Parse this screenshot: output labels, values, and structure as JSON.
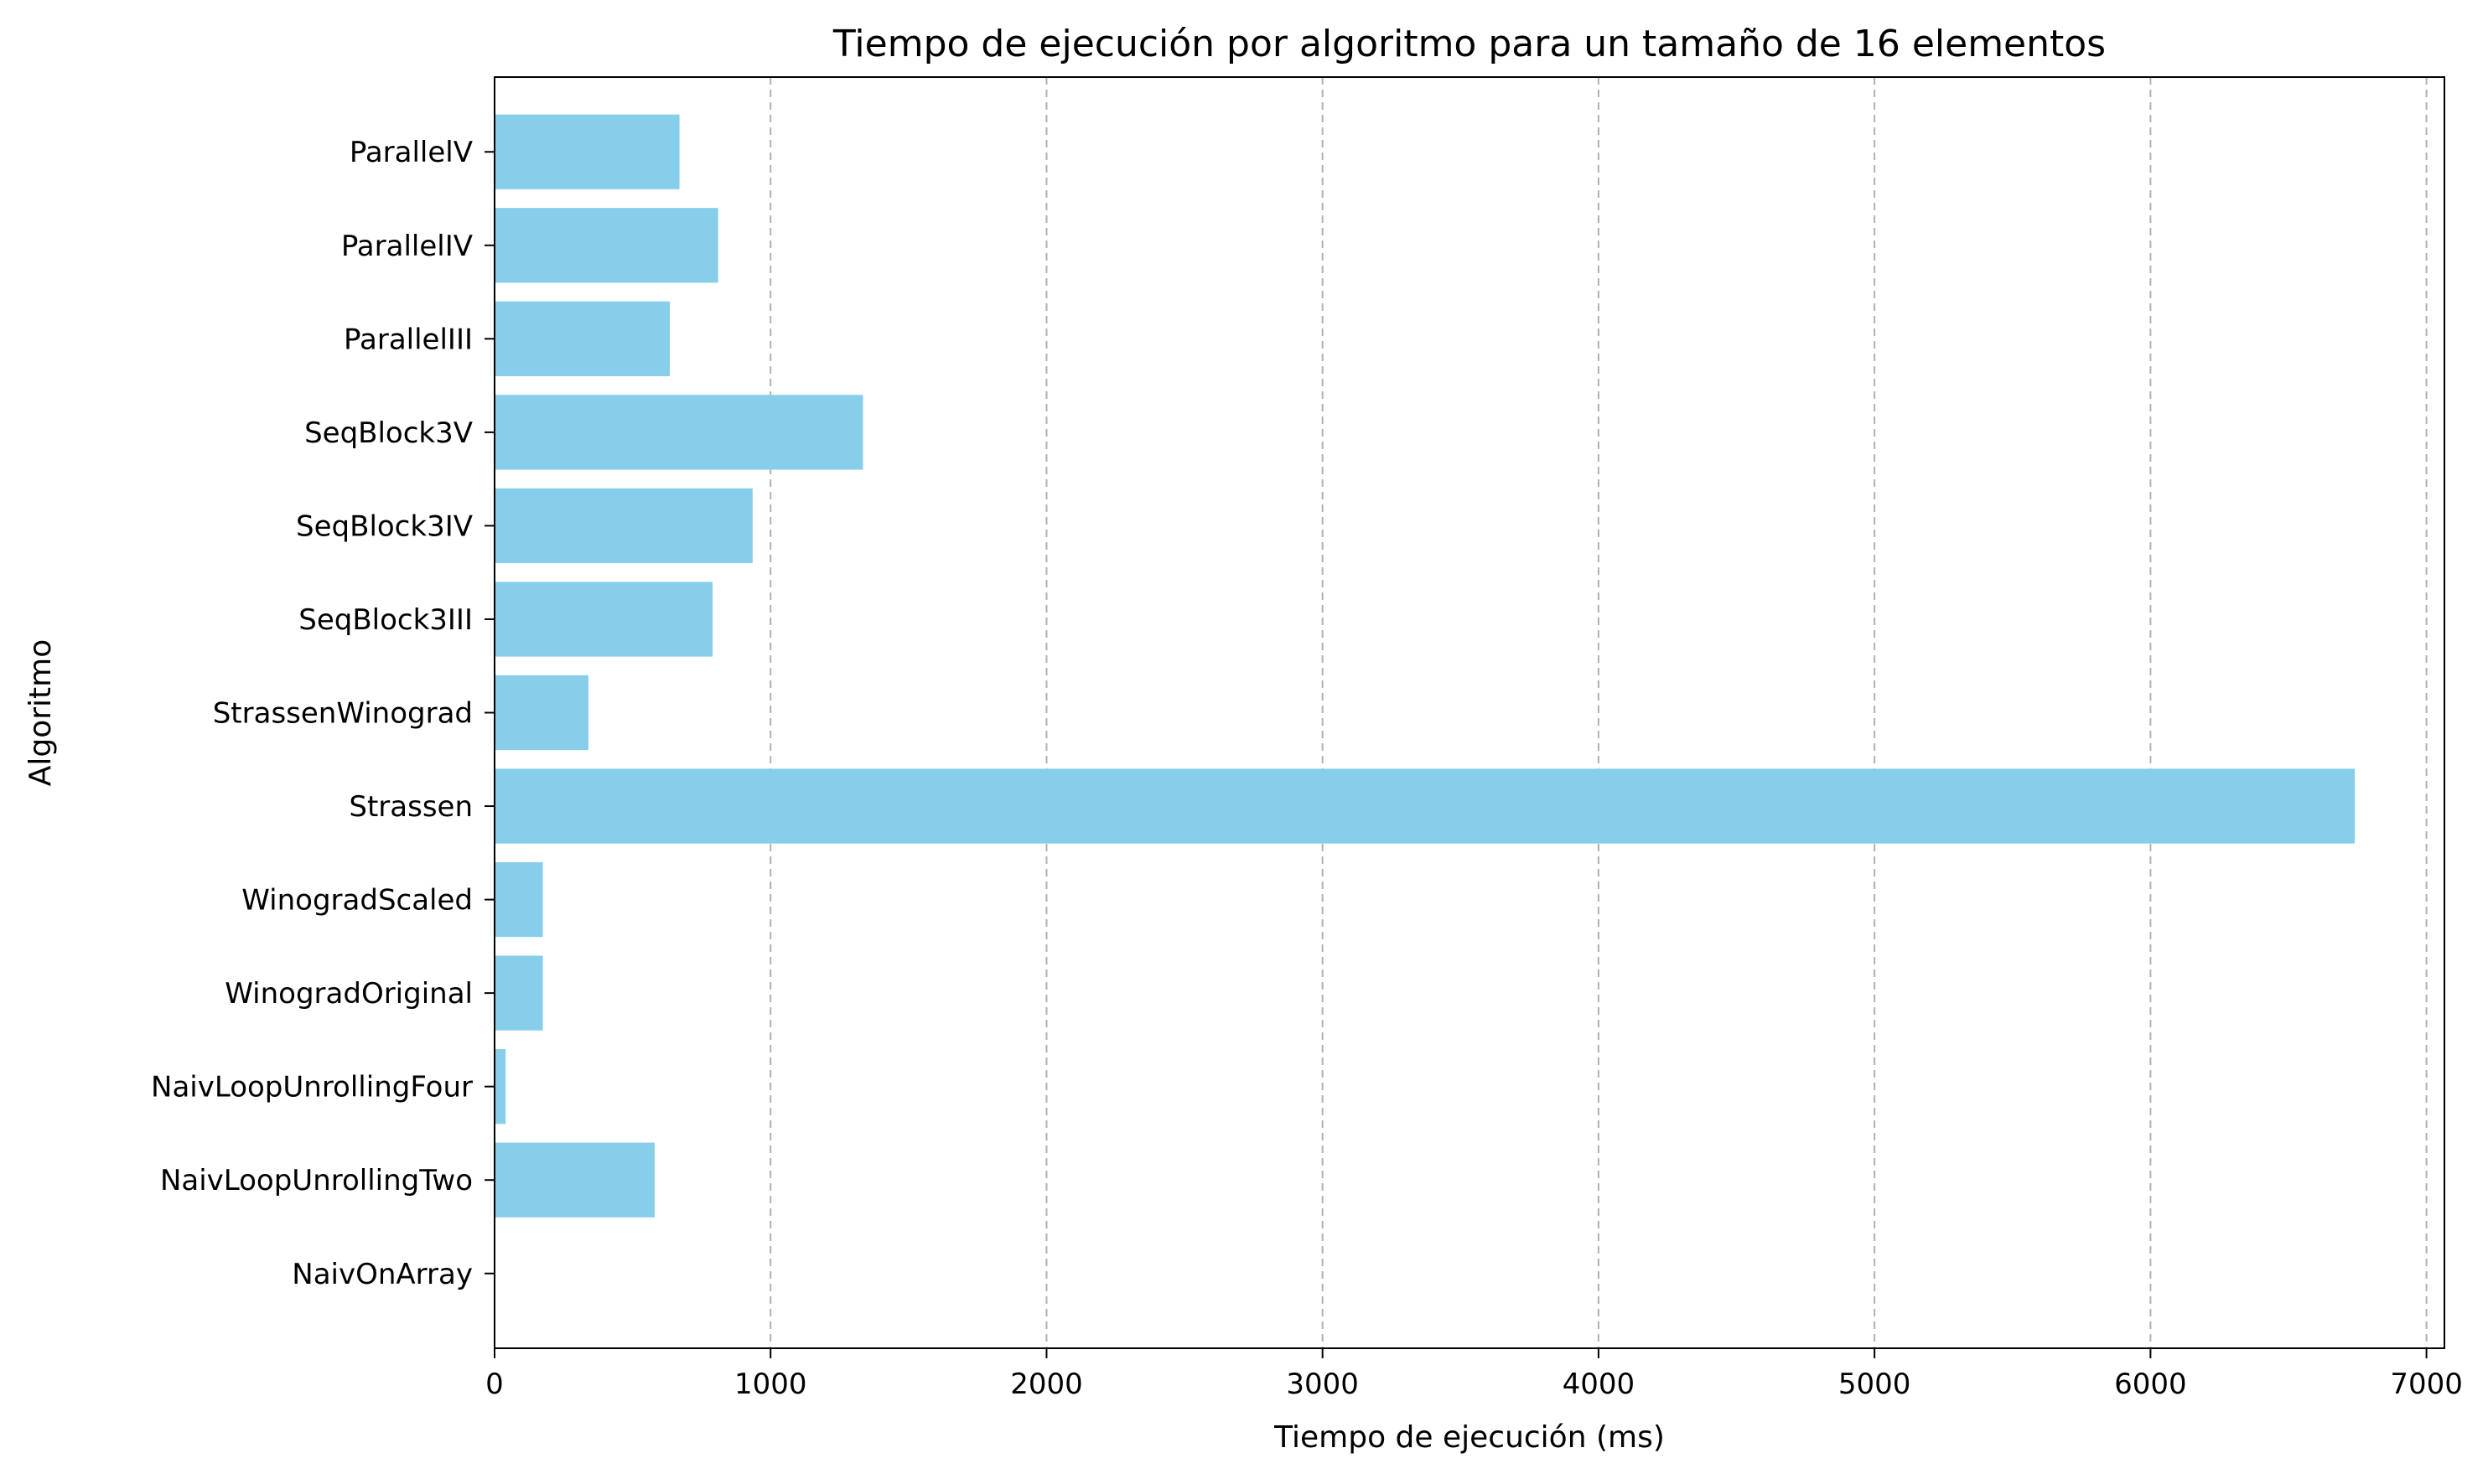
{
  "chart_data": {
    "type": "bar",
    "orientation": "horizontal",
    "title": "Tiempo de ejecución por algoritmo para un tamaño de 16 elementos",
    "xlabel": "Tiempo de ejecución (ms)",
    "ylabel": "Algoritmo",
    "xlim": [
      0,
      7000
    ],
    "xticks": [
      0,
      1000,
      2000,
      3000,
      4000,
      5000,
      6000,
      7000
    ],
    "xtick_labels": [
      "0",
      "1000",
      "2000",
      "3000",
      "4000",
      "5000",
      "6000",
      "7000"
    ],
    "grid": "x, dashed",
    "categories": [
      "NaivOnArray",
      "NaivLoopUnrollingTwo",
      "NaivLoopUnrollingFour",
      "WinogradOriginal",
      "WinogradScaled",
      "Strassen",
      "StrassenWinograd",
      "SeqBlock3III",
      "SeqBlock3IV",
      "SeqBlock3V",
      "ParallelIII",
      "ParallelIV",
      "ParallelV"
    ],
    "values": [
      0,
      580,
      40,
      175,
      175,
      6740,
      340,
      790,
      935,
      1335,
      635,
      810,
      670
    ],
    "bar_color": "#87ceeb",
    "grid_color": "#b0b0b0"
  }
}
